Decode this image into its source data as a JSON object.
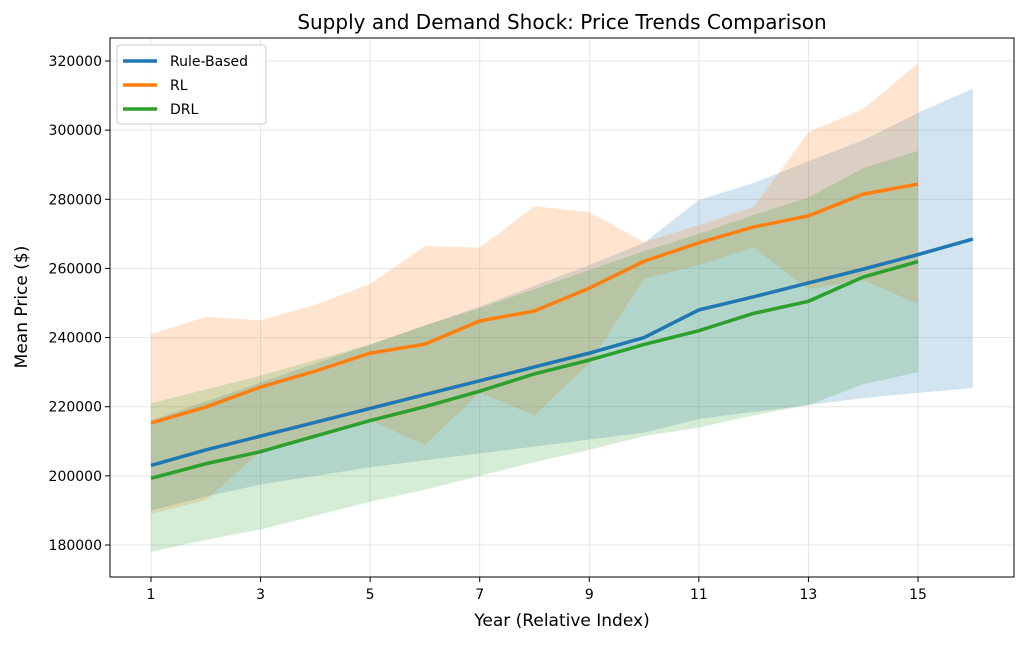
{
  "chart_data": {
    "type": "line",
    "title": "Supply and Demand Shock: Price Trends Comparison",
    "xlabel": "Year (Relative Index)",
    "ylabel": "Mean Price ($)",
    "xlim": [
      0.2,
      16.7
    ],
    "ylim": [
      171500,
      325500
    ],
    "xticks": [
      1,
      3,
      5,
      7,
      9,
      11,
      13,
      15
    ],
    "yticks": [
      180000,
      200000,
      220000,
      240000,
      260000,
      280000,
      300000,
      320000
    ],
    "grid": true,
    "legend_position": "top-left",
    "series": [
      {
        "name": "Rule-Based",
        "color": "#1f77b4",
        "x": [
          1,
          2,
          3,
          4,
          5,
          6,
          7,
          8,
          9,
          10,
          11,
          12,
          13,
          14,
          15,
          16
        ],
        "values": [
          203000,
          207500,
          211500,
          215500,
          219500,
          223500,
          227500,
          231500,
          235500,
          240000,
          248000,
          251800,
          255800,
          259800,
          264000,
          268500
        ],
        "upper": [
          216000,
          221500,
          227000,
          232500,
          238000,
          243500,
          249000,
          255000,
          261000,
          267400,
          279800,
          284700,
          291000,
          297100,
          305000,
          312000
        ],
        "lower": [
          190000,
          194000,
          197500,
          200000,
          202500,
          204500,
          206500,
          208500,
          210500,
          212500,
          216500,
          218500,
          220500,
          222500,
          224000,
          225400
        ]
      },
      {
        "name": "RL",
        "color": "#ff7f0e",
        "x": [
          1,
          2,
          3,
          4,
          5,
          6,
          7,
          8,
          9,
          10,
          11,
          12,
          13,
          14,
          15
        ],
        "values": [
          215300,
          219900,
          225700,
          230300,
          235500,
          238100,
          244800,
          247700,
          254300,
          262100,
          267400,
          272000,
          275200,
          281500,
          284400
        ],
        "upper": [
          241000,
          246000,
          245000,
          249500,
          255500,
          266500,
          266000,
          278000,
          276300,
          267600,
          272500,
          277800,
          299400,
          306100,
          319400
        ],
        "lower": [
          189000,
          193000,
          207000,
          211000,
          216000,
          209000,
          224000,
          217500,
          232500,
          257000,
          261000,
          266000,
          254000,
          256600,
          249700
        ]
      },
      {
        "name": "DRL",
        "color": "#2ca02c",
        "x": [
          1,
          2,
          3,
          4,
          5,
          6,
          7,
          8,
          9,
          10,
          11,
          12,
          13,
          14,
          15
        ],
        "values": [
          199300,
          203500,
          207000,
          211500,
          216000,
          220000,
          224500,
          229500,
          233500,
          238000,
          242000,
          247000,
          250500,
          257500,
          262000
        ],
        "upper": [
          221000,
          225000,
          229000,
          233500,
          238000,
          243500,
          248500,
          254000,
          259500,
          265000,
          270000,
          275500,
          280500,
          289000,
          294000
        ],
        "lower": [
          178000,
          181500,
          184500,
          188500,
          192500,
          196000,
          200000,
          204000,
          207500,
          211500,
          214000,
          217500,
          220500,
          226500,
          230000
        ]
      }
    ]
  }
}
